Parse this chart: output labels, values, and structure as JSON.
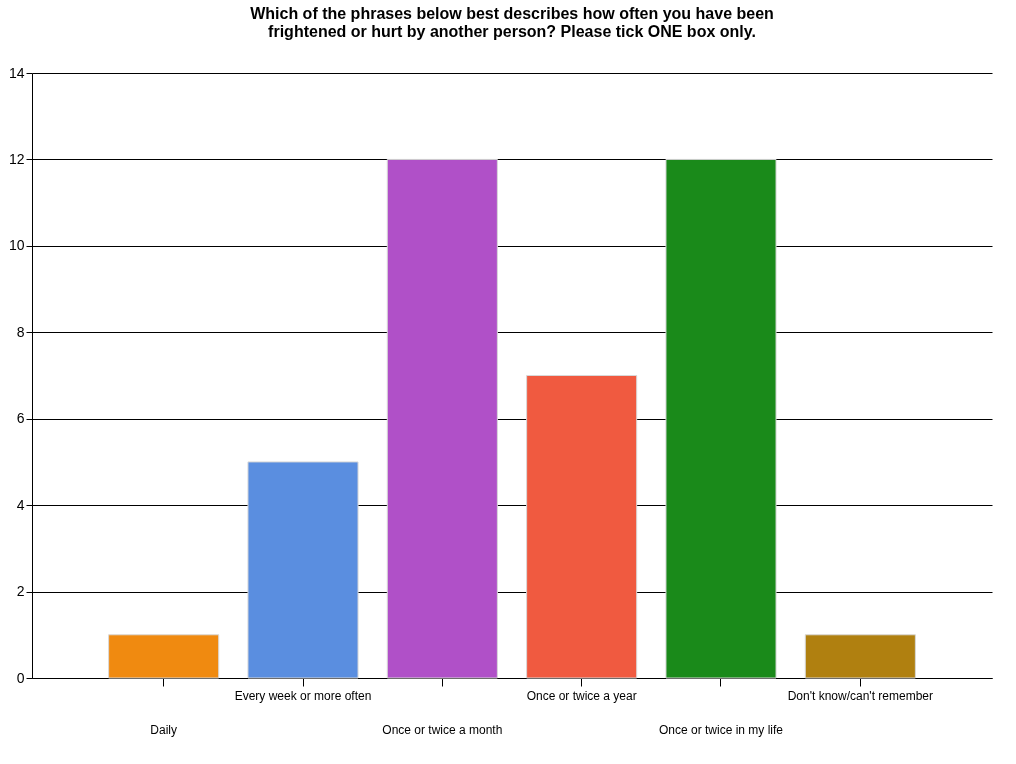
{
  "chart_data": {
    "type": "bar",
    "title": "Which of the phrases below best describes how often you have been frightened or hurt by another person? Please tick ONE box only.",
    "categories": [
      "Daily",
      "Every week or more often",
      "Once or twice a month",
      "Once or twice a year",
      "Once or twice in my life",
      "Don't know/can't remember"
    ],
    "values": [
      1,
      5,
      12,
      7,
      12,
      1
    ],
    "colors": [
      "#f08a10",
      "#5a8ee0",
      "#b050c8",
      "#f05a40",
      "#1a8a1a",
      "#b08010"
    ],
    "ylim": [
      0,
      14
    ],
    "yticks": [
      0,
      2,
      4,
      6,
      8,
      10,
      12,
      14
    ],
    "grid": "y"
  }
}
